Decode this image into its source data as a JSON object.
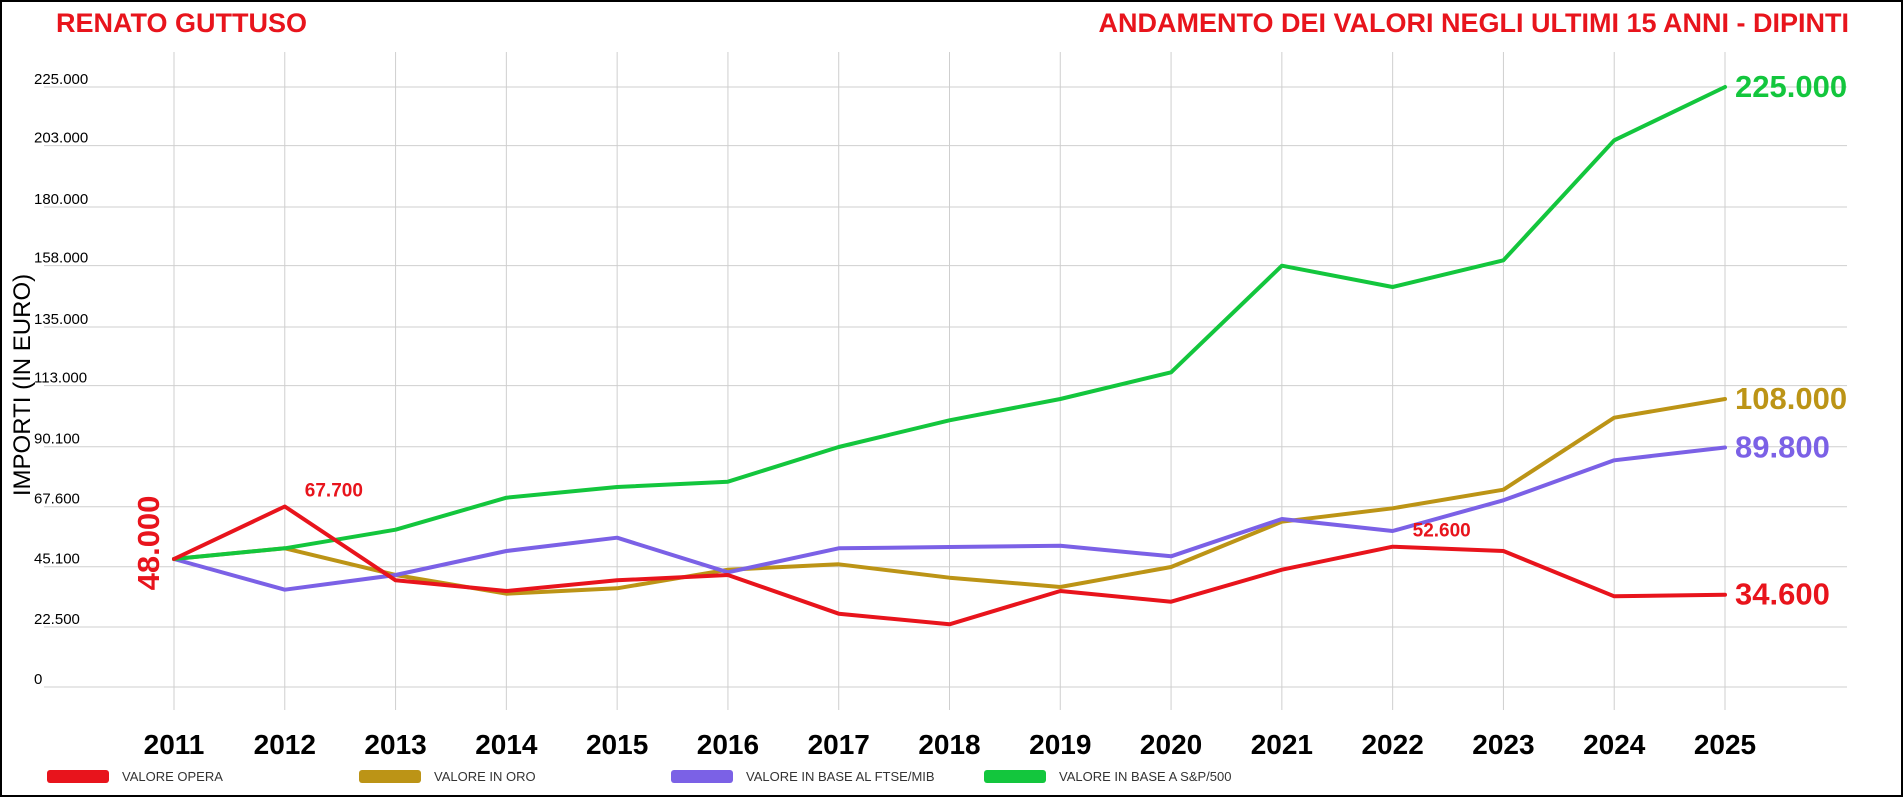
{
  "title_left": "RENATO GUTTUSO",
  "title_right": "ANDAMENTO DEI VALORI NEGLI ULTIMI 15 ANNI - DIPINTI",
  "colors": {
    "opera": "#e8141c",
    "oro": "#bc9416",
    "ftse": "#7b61e6",
    "sp500": "#13c63d",
    "grid": "#cfcfcf",
    "title": "#e8141c"
  },
  "chart_data": {
    "type": "line",
    "title": "ANDAMENTO DEI VALORI NEGLI ULTIMI 15 ANNI - DIPINTI",
    "ylabel": "IMPORTI (IN EURO)",
    "xlabel": "",
    "x": [
      "2011",
      "2012",
      "2013",
      "2014",
      "2015",
      "2016",
      "2017",
      "2018",
      "2019",
      "2020",
      "2021",
      "2022",
      "2023",
      "2024",
      "2025"
    ],
    "y_ticks": [
      {
        "value": 0,
        "label": "0"
      },
      {
        "value": 22500,
        "label": "22.500"
      },
      {
        "value": 45100,
        "label": "45.100"
      },
      {
        "value": 67600,
        "label": "67.600"
      },
      {
        "value": 90100,
        "label": "90.100"
      },
      {
        "value": 113000,
        "label": "113.000"
      },
      {
        "value": 135000,
        "label": "135.000"
      },
      {
        "value": 158000,
        "label": "158.000"
      },
      {
        "value": 180000,
        "label": "180.000"
      },
      {
        "value": 203000,
        "label": "203.000"
      },
      {
        "value": 225000,
        "label": "225.000"
      }
    ],
    "ylim": [
      0,
      225000
    ],
    "series": [
      {
        "key": "opera",
        "name": "VALORE OPERA",
        "values": [
          48000,
          67700,
          40000,
          36000,
          40000,
          42000,
          27500,
          23500,
          36000,
          32000,
          44000,
          52600,
          51000,
          34000,
          34600
        ]
      },
      {
        "key": "oro",
        "name": "VALORE IN ORO",
        "values": [
          48000,
          52000,
          42000,
          35000,
          37000,
          44000,
          46000,
          41000,
          37500,
          45000,
          62000,
          67000,
          74000,
          101000,
          108000
        ]
      },
      {
        "key": "ftse",
        "name": "VALORE IN BASE AL FTSE/MIB",
        "values": [
          48000,
          36500,
          42000,
          51000,
          56000,
          43000,
          52000,
          52500,
          53000,
          49000,
          63000,
          58500,
          70000,
          85000,
          89800
        ]
      },
      {
        "key": "sp500",
        "name": "VALORE IN BASE A S&P/500",
        "values": [
          48000,
          52000,
          59000,
          71000,
          75000,
          77000,
          90000,
          100000,
          108000,
          118000,
          158000,
          150000,
          160000,
          205000,
          225000
        ]
      }
    ],
    "annotations": [
      {
        "series": "opera",
        "index": 0,
        "text": "48.000",
        "style": "start-vertical"
      },
      {
        "series": "opera",
        "index": 1,
        "text": "67.700",
        "style": "small"
      },
      {
        "series": "opera",
        "index": 11,
        "text": "52.600",
        "style": "small"
      },
      {
        "series": "opera",
        "index": 14,
        "text": "34.600",
        "style": "end"
      },
      {
        "series": "oro",
        "index": 14,
        "text": "108.000",
        "style": "end"
      },
      {
        "series": "ftse",
        "index": 14,
        "text": "89.800",
        "style": "end"
      },
      {
        "series": "sp500",
        "index": 14,
        "text": "225.000",
        "style": "end"
      }
    ]
  }
}
